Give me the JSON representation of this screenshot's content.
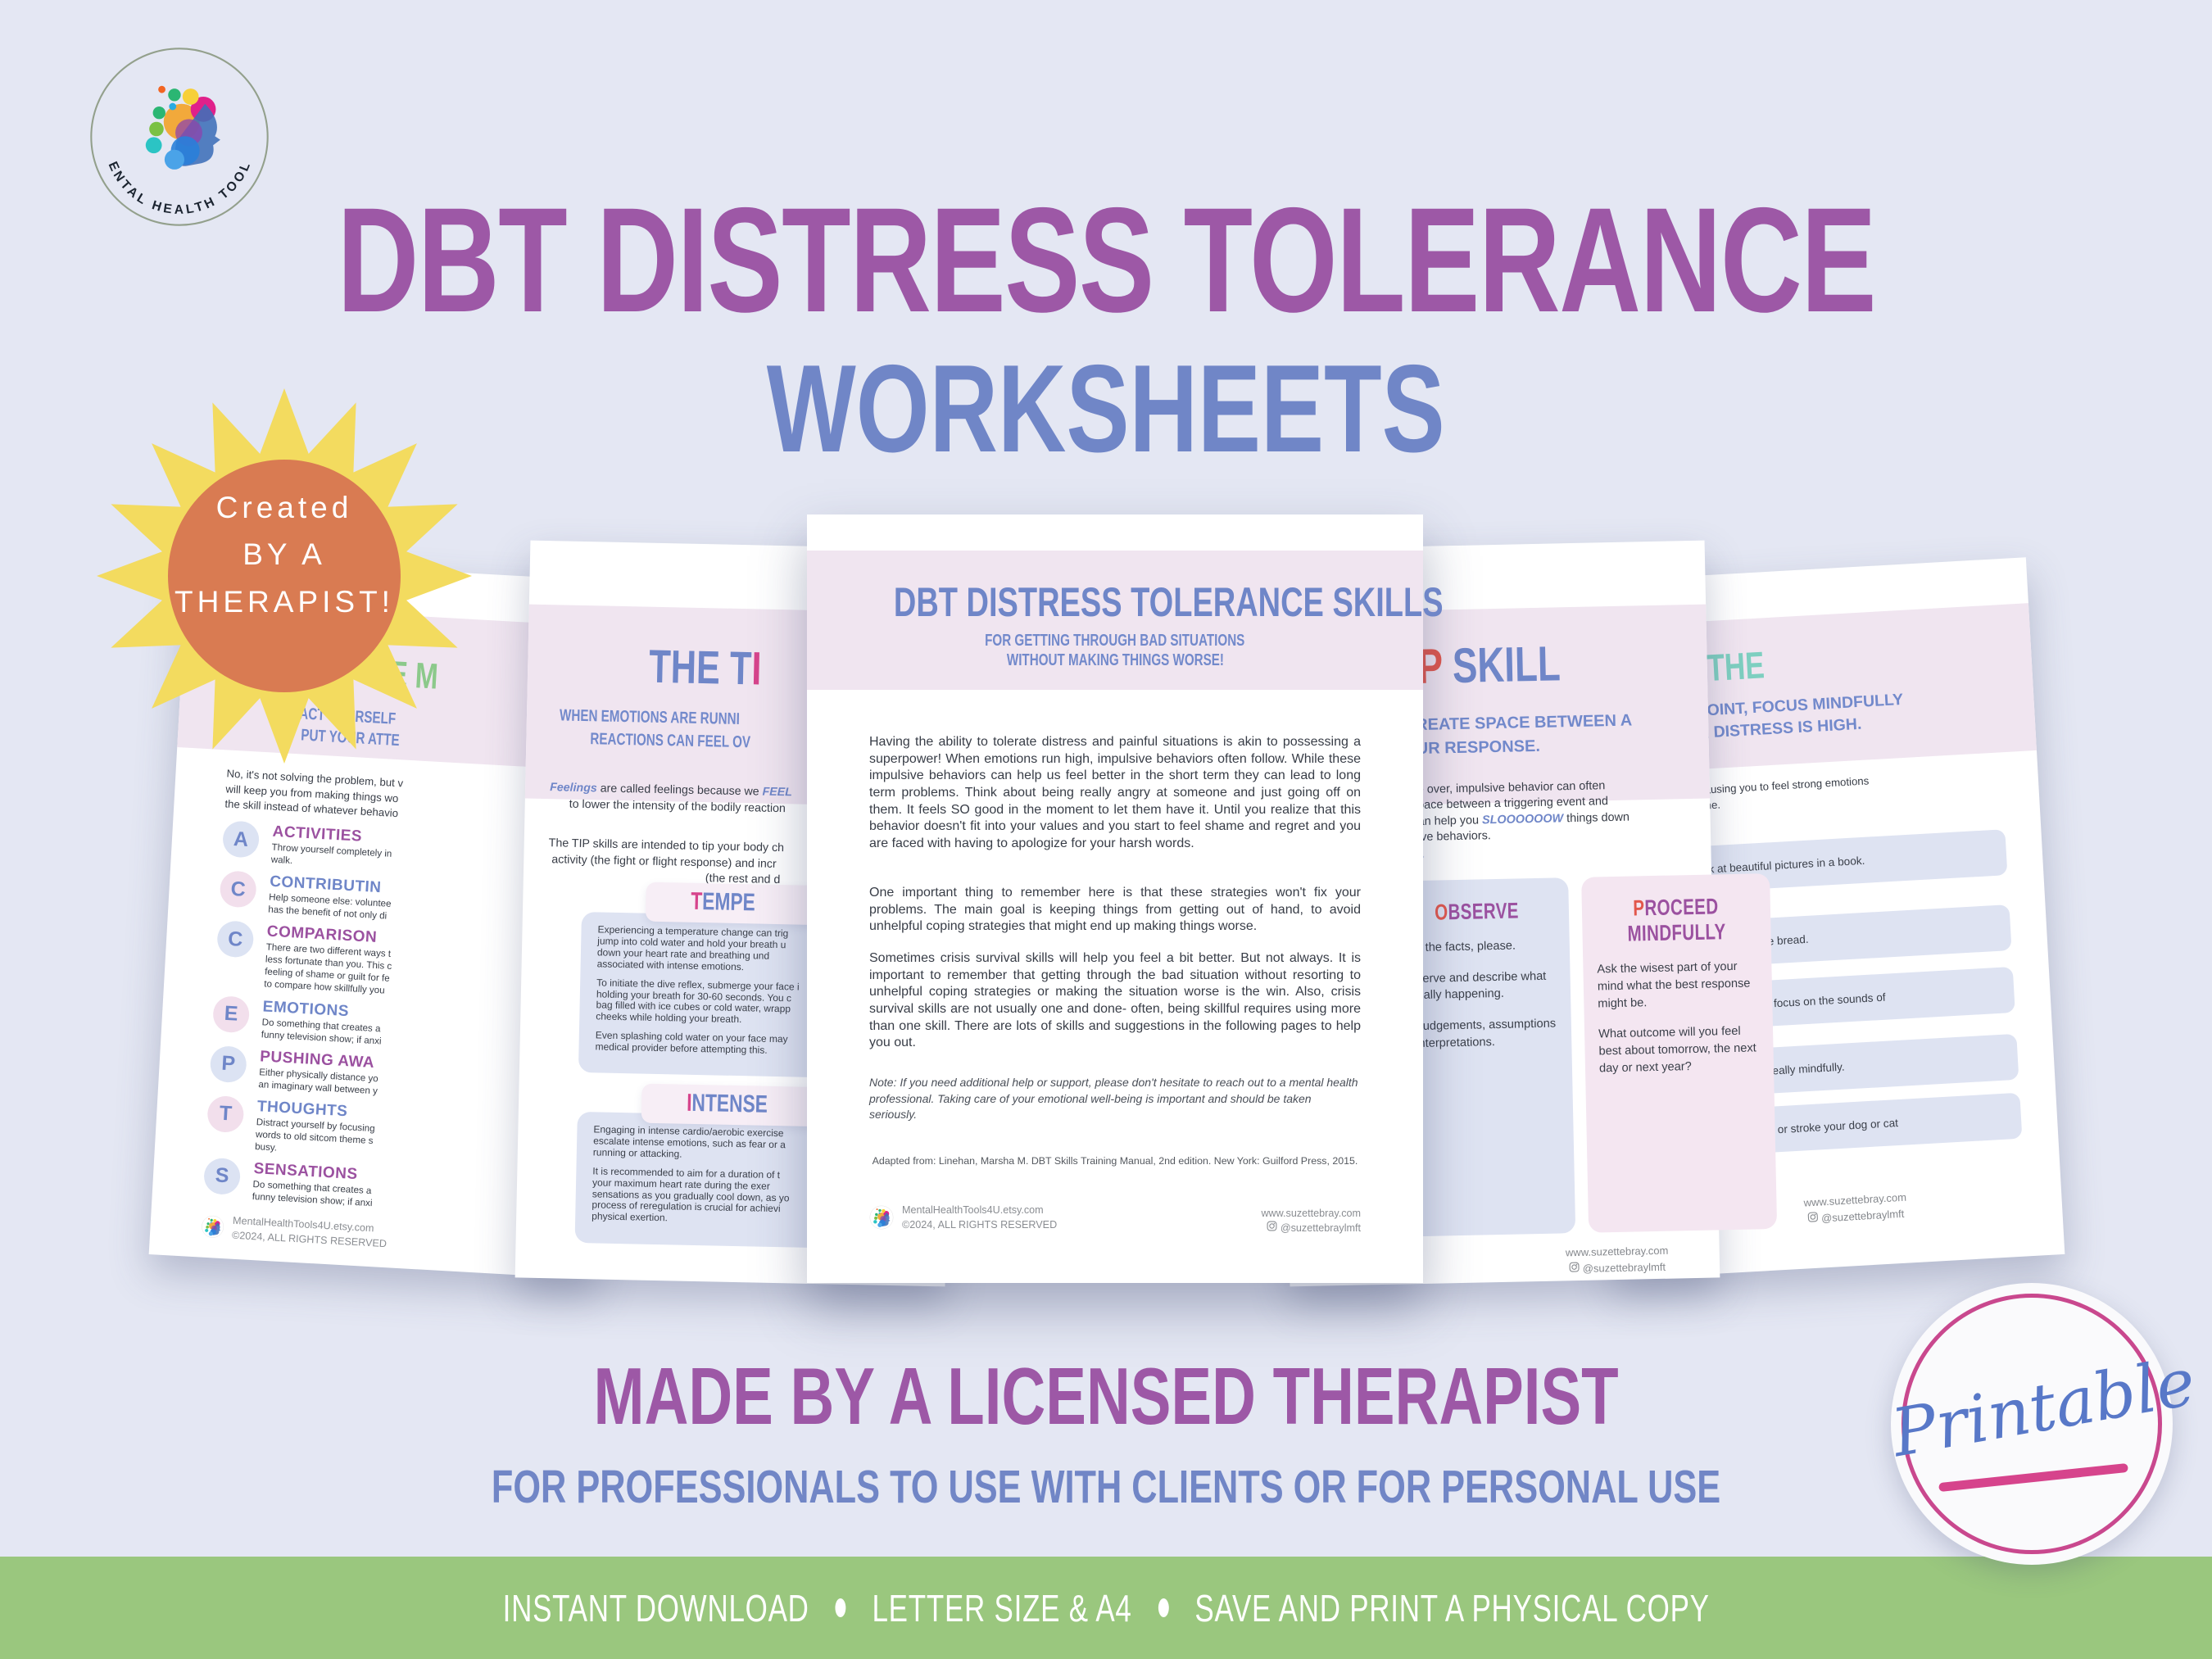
{
  "colors": {
    "background": "#E4E7F3",
    "title_purple": "#9D58A6",
    "title_blue": "#7086C7",
    "banner_pink": "#F0E5F0",
    "accent_pink": "#D6448C",
    "accent_red": "#E2574C",
    "accent_teal": "#7ECFC0",
    "accent_green": "#8CC98B",
    "bar_green": "#9AC77E",
    "sun_yellow": "#F3DB5F",
    "sun_orange": "#D97B52"
  },
  "logo": {
    "arc_text": "MENTAL HEALTH TOOLS"
  },
  "header": {
    "title_line1": "DBT DISTRESS TOLERANCE",
    "title_line2": "WORKSHEETS"
  },
  "sun_badge": {
    "line1": "Created",
    "line2": "BY A",
    "line3": "THERAPIST!"
  },
  "tagline": {
    "line1": "MADE BY A LICENSED THERAPIST",
    "line2": "FOR PROFESSIONALS TO USE WITH CLIENTS OR FOR PERSONAL USE"
  },
  "bottom_bar": {
    "items": [
      "INSTANT DOWNLOAD",
      "LETTER SIZE & A4",
      "SAVE AND PRINT A PHYSICAL COPY"
    ]
  },
  "printable_badge": {
    "label": "Printable"
  },
  "wise": {
    "title_fragment": "ISE M",
    "subtitle_l1": "ISTRACT YOURSELF",
    "subtitle_l2": "PUT YOUR ATTE",
    "intro": "No, it's not solving the problem, but v\nwill keep you from making things wo\nthe skill instead of whatever behavio",
    "items": [
      {
        "letter": "A",
        "heading": "ACTIVITIES",
        "text": "Throw yourself completely in\nwalk."
      },
      {
        "letter": "C",
        "heading": "CONTRIBUTIN",
        "text": "Help someone else: voluntee\nhas the benefit of not only di"
      },
      {
        "letter": "C",
        "heading": "COMPARISON",
        "text": "There are two different ways t\nless fortunate than you. This c\nfeeling of shame or guilt for fe\nto compare how skillfully you"
      },
      {
        "letter": "E",
        "heading": "EMOTIONS",
        "text": "Do something that creates a\nfunny television show; if anxi"
      },
      {
        "letter": "P",
        "heading": "PUSHING AWA",
        "text": "Either physically distance yo\nan imaginary wall between y"
      },
      {
        "letter": "T",
        "heading": "THOUGHTS",
        "text": "Distract yourself by focusing\nwords to old sitcom theme s\nbusy."
      },
      {
        "letter": "S",
        "heading": "SENSATIONS",
        "text": "Do something that creates a\nfunny television show; if anxi"
      }
    ],
    "footer_l1": "MentalHealthTools4U.etsy.com",
    "footer_l2": "©2024, ALL RIGHTS RESERVED"
  },
  "tip": {
    "title_blue": "THE T",
    "title_pink": "I",
    "subtitle_l1": "WHEN EMOTIONS ARE RUNNI",
    "subtitle_l2": "REACTIONS CAN FEEL OV",
    "p1_em1": "Feelings",
    "p1_mid": " are called feelings because we ",
    "p1_em2": "FEEL",
    "p1_l2": "to lower the intensity of the bodily reaction",
    "p2_l1": "The TIP skills are intended to tip your body ch",
    "p2_l2": "activity (the fight or flight response) and incr",
    "p2_l3": "(the rest and d",
    "box1_t_pink": "T",
    "box1_t_rest": "EMPE",
    "box1_p1": "Experiencing a temperature change can trig\njump into cold water and hold your breath u\ndown your heart rate and breathing und\nassociated with intense emotions.",
    "box1_p2": "To initiate the dive reflex, submerge your face i\nholding your breath for 30-60 seconds. You c\nbag filled with ice cubes or cold water, wrapp\ncheeks while holding your breath.",
    "box1_p3": "Even splashing cold water on your face may\nmedical provider before attempting this.",
    "box2_t_pink": "I",
    "box2_t_rest": "NTENSE",
    "box2_p1": "Engaging in intense cardio/aerobic exercise\nescalate intense emotions, such as fear or a\nrunning or attacking.",
    "box2_p2": "It is recommended to aim for a duration of t\nyour maximum heart rate during the exer\nsensations as you gradually cool down, as yo\nprocess of reregulation is crucial for achievi\nphysical exertion."
  },
  "center": {
    "title": "DBT DISTRESS TOLERANCE SKILLS",
    "subtitle_l1": "FOR GETTING THROUGH BAD SITUATIONS",
    "subtitle_l2": "WITHOUT MAKING THINGS WORSE!",
    "para1": "Having the ability to tolerate distress and painful situations is akin to possessing a superpower! When emotions run high, impulsive behaviors often follow. While these impulsive behaviors can help us feel better in the short term they can lead to long term problems. Think about being really angry at someone and just going off on them. It feels SO good in the moment to let them have it. Until you realize that this behavior doesn't fit into your values and you start to feel shame and regret and you are faced with having to apologize for your harsh words.",
    "para2": "One important thing to remember here is that these strategies won't fix your problems. The main goal is keeping things from getting out of hand, to avoid unhelpful coping strategies that might end up making things worse.",
    "para3": "Sometimes crisis survival skills will help you feel a bit better. But not always. It is important to remember that getting through the bad situation without resorting to unhelpful coping strategies or making the situation worse is the win. Also, crisis survival skills are not usually one and done- often, being skillful requires using more than one skill. There are lots of skills and suggestions in the following pages to help you out.",
    "note": "Note: If you need additional help or support, please don't hesitate to reach out to a mental health professional. Taking care of your emotional well-being is important and should be taken seriously.",
    "citation": "Adapted from: Linehan, Marsha M. DBT Skills Training Manual, 2nd edition. New York: Guilford Press, 2015.",
    "footer_l1": "MentalHealthTools4U.etsy.com",
    "footer_l2": "©2024, ALL RIGHTS RESERVED",
    "footer_r1": "www.suzettebray.com",
    "footer_r2": "@suzettebraylmft"
  },
  "stop": {
    "title_red": "P",
    "title_rest": " SKILL",
    "subtitle": "REATE SPACE BETWEEN A\nUR RESPONSE.",
    "body_l1": "e over, impulsive behavior can often",
    "body_l2": "pace between a triggering event and",
    "body_l3_pre": "an help you ",
    "body_em": "SLOOOOOOW",
    "body_l3_post": " things down",
    "body_l4": "ive behaviors.",
    "observe_t_red": "O",
    "observe_t_rest": "BSERVE",
    "observe_p1": "Just the facts, please.",
    "observe_p2": "Observe and describe what is really happening.",
    "observe_p3": "No judgements, assumptions or interpretations.",
    "proceed_t_red": "P",
    "proceed_t_rest": "ROCEED",
    "proceed_t_l2": "MINDFULLY",
    "proceed_p1": "Ask the wisest part of your mind what the best response might be.",
    "proceed_p2": "What outcome will you feel best about tomorrow, the next day or next year?",
    "footer_r1": "www.suzettebray.com",
    "footer_r2": "@suzettebraylmft"
  },
  "soothe": {
    "title_fragment": "THE",
    "subtitle": "POINT, FOCUS MINDFULLY\nR DISTRESS IS HIGH.",
    "body": "causing you to feel strong emotions\nime.",
    "rows": [
      "k at beautiful pictures in a book.",
      "r bake some bread.",
      "g music, or focus on the sounds of",
      "one thing really mindfully.",
      "self a hug, or stroke your dog or cat"
    ],
    "footer_r1": "www.suzettebray.com",
    "footer_r2": "@suzettebraylmft"
  }
}
